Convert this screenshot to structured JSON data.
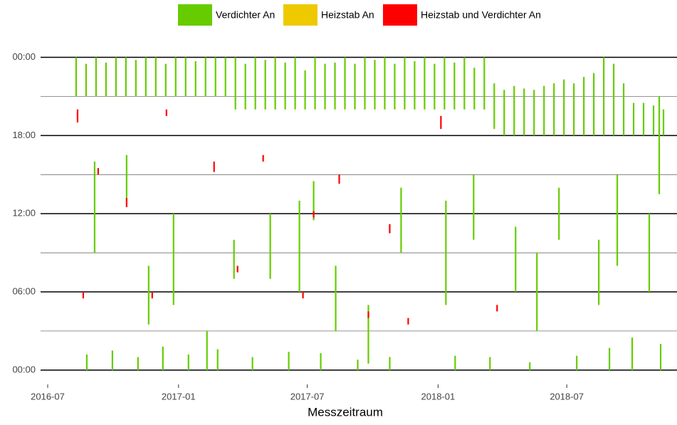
{
  "chart_data": {
    "type": "range",
    "x_label": "Messzeitraum",
    "legend": "top",
    "xlim": [
      "2016-06-21",
      "2018-12-03"
    ],
    "xticks": [
      "2016-07",
      "2017-01",
      "2017-07",
      "2018-01",
      "2018-07"
    ],
    "ylim": [
      -1.1,
      24.3
    ],
    "yticks": [
      {
        "value": 0,
        "label": "00:00"
      },
      {
        "value": 6,
        "label": "06:00"
      },
      {
        "value": 12,
        "label": "12:00"
      },
      {
        "value": 18,
        "label": "18:00"
      },
      {
        "value": 24,
        "label": "00:00"
      }
    ],
    "minor_yticks": [
      3,
      9,
      15,
      21
    ],
    "grid": true,
    "series": [
      {
        "name": "Verdichter An",
        "color": "#66cc00",
        "x": [
          "2016-08-10",
          "2016-08-24",
          "2016-09-07",
          "2016-09-21",
          "2016-10-05",
          "2016-10-19",
          "2016-11-02",
          "2016-11-16",
          "2016-11-30",
          "2016-12-14",
          "2016-12-28",
          "2017-01-11",
          "2017-01-25",
          "2017-02-08",
          "2017-02-22",
          "2017-03-08",
          "2017-03-22",
          "2017-04-05",
          "2017-04-19",
          "2017-05-03",
          "2017-05-17",
          "2017-05-31",
          "2017-06-14",
          "2017-06-28",
          "2017-07-12",
          "2017-07-26",
          "2017-08-09",
          "2017-08-23",
          "2017-09-06",
          "2017-09-20",
          "2017-10-04",
          "2017-10-18",
          "2017-11-01",
          "2017-11-15",
          "2017-11-29",
          "2017-12-13",
          "2017-12-27",
          "2018-01-10",
          "2018-01-24",
          "2018-02-07",
          "2018-02-21",
          "2018-03-07",
          "2018-03-21",
          "2018-04-04",
          "2018-04-18",
          "2018-05-02",
          "2018-05-16",
          "2018-05-30",
          "2018-06-13",
          "2018-06-27",
          "2018-07-11",
          "2018-07-25",
          "2018-08-08",
          "2018-08-22",
          "2018-09-05",
          "2018-09-19",
          "2018-10-03",
          "2018-10-17",
          "2018-10-31",
          "2018-11-14",
          "2016-09-05",
          "2016-10-20",
          "2016-11-20",
          "2016-12-25",
          "2017-02-10",
          "2017-03-20",
          "2017-05-10",
          "2017-06-20",
          "2017-07-10",
          "2017-08-10",
          "2017-09-25",
          "2017-11-10",
          "2018-01-12",
          "2018-02-20",
          "2018-04-20",
          "2018-05-20",
          "2018-06-20",
          "2018-08-15",
          "2018-09-10",
          "2018-10-25",
          "2018-11-08",
          "2016-08-25",
          "2016-09-30",
          "2016-11-05",
          "2016-12-10",
          "2017-01-15",
          "2017-02-25",
          "2017-04-15",
          "2017-06-05",
          "2017-07-20",
          "2017-09-10",
          "2017-10-25",
          "2018-01-25",
          "2018-03-15",
          "2018-05-10",
          "2018-07-15",
          "2018-08-30",
          "2018-10-01",
          "2018-11-10"
        ],
        "low": [
          21,
          21,
          21,
          21,
          21,
          21,
          21,
          21,
          21,
          21,
          21,
          21,
          21,
          21,
          21,
          21,
          20,
          20,
          20,
          20,
          20,
          20,
          20,
          20,
          20,
          20,
          20,
          20,
          20,
          20,
          20,
          20,
          20,
          20,
          20,
          20,
          20,
          20,
          20,
          20,
          20,
          20,
          18.5,
          18,
          18,
          18,
          18,
          18,
          18,
          18,
          18,
          18,
          18,
          18,
          18,
          18,
          18,
          18,
          18,
          18,
          9,
          13,
          3.5,
          5,
          0,
          7,
          7,
          6,
          11.5,
          3,
          0.5,
          9,
          5,
          10,
          6,
          3,
          10,
          5,
          8,
          6,
          13.5,
          0,
          0,
          0,
          0,
          0,
          0,
          0,
          0,
          0,
          0,
          0,
          0,
          0,
          0,
          0,
          0,
          0,
          0
        ],
        "high": [
          24,
          23.5,
          24,
          23.6,
          24,
          24,
          23.8,
          24,
          24,
          23.5,
          24,
          24,
          23.7,
          24,
          24,
          24,
          24,
          23.5,
          24,
          23.8,
          24,
          23.6,
          24,
          23,
          24,
          23.5,
          23.6,
          24,
          23.5,
          24,
          23.8,
          24,
          23.5,
          24,
          23.7,
          24,
          23.5,
          24,
          23.6,
          24,
          23.2,
          24,
          22,
          21.5,
          21.8,
          21.6,
          21.5,
          21.8,
          22,
          22.3,
          22,
          22.5,
          22.8,
          24,
          23.5,
          22,
          20.5,
          20.5,
          20.3,
          20,
          16,
          16.5,
          8,
          12,
          3,
          10,
          12,
          13,
          14.5,
          8,
          5,
          14,
          13,
          15,
          11,
          9,
          14,
          10,
          15,
          12,
          21,
          1.2,
          1.5,
          1,
          1.8,
          1.2,
          1.6,
          1,
          1.4,
          1.3,
          0.8,
          1,
          1.1,
          1,
          0.6,
          1.1,
          1.7,
          2.5,
          2
        ]
      },
      {
        "name": "Heizstab An",
        "color": "#eec900",
        "x": [],
        "low": [],
        "high": []
      },
      {
        "name": "Heizstab und Verdichter An",
        "color": "#ff0000",
        "x": [
          "2016-08-12",
          "2016-09-10",
          "2016-10-20",
          "2016-12-15",
          "2017-02-20",
          "2017-03-25",
          "2017-04-30",
          "2017-06-25",
          "2017-07-10",
          "2017-08-15",
          "2017-09-25",
          "2017-10-25",
          "2017-11-20",
          "2018-01-05",
          "2018-03-25",
          "2016-08-20",
          "2016-11-25"
        ],
        "low": [
          19,
          15,
          12.5,
          19.5,
          15.2,
          7.5,
          16,
          5.5,
          11.7,
          14.3,
          4,
          10.5,
          3.5,
          18.5,
          4.5,
          5.5,
          5.5
        ],
        "high": [
          20,
          15.5,
          13.2,
          20,
          16,
          8,
          16.5,
          6,
          12.2,
          15,
          4.5,
          11.2,
          4,
          19.5,
          5,
          6,
          6
        ]
      }
    ]
  }
}
